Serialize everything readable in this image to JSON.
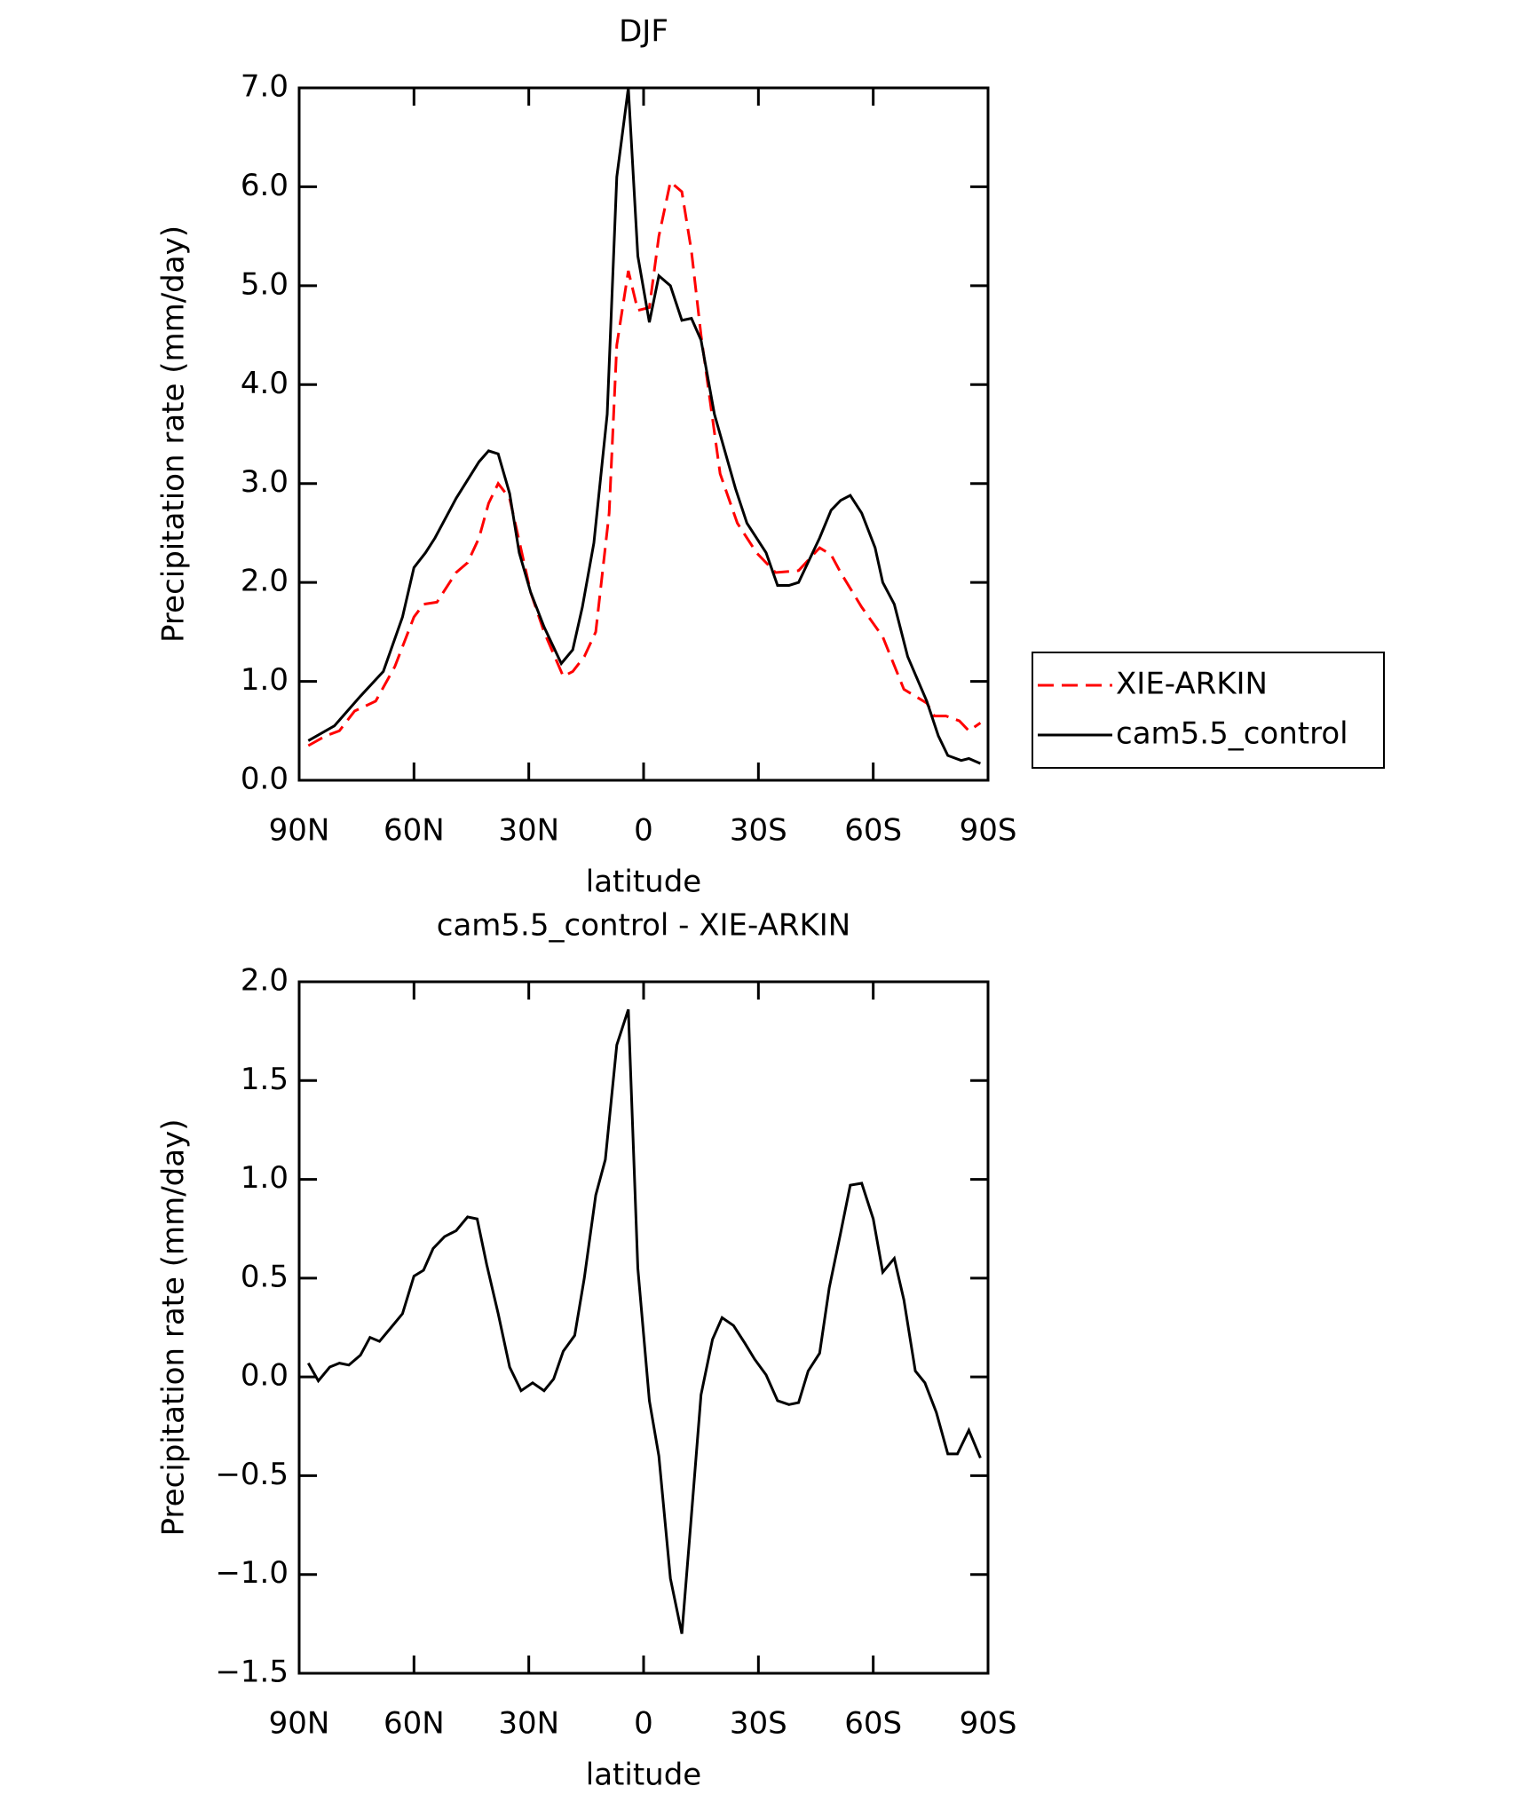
{
  "chart_data": [
    {
      "type": "line",
      "title": "DJF",
      "xlabel": "latitude",
      "ylabel": "Precipitation rate (mm/day)",
      "xlim": [
        90,
        -90
      ],
      "xticks": [
        {
          "value": 90,
          "label": "90N"
        },
        {
          "value": 60,
          "label": "60N"
        },
        {
          "value": 30,
          "label": "30N"
        },
        0,
        {
          "value": -30,
          "label": "30S"
        },
        {
          "value": -60,
          "label": "60S"
        },
        {
          "value": -90,
          "label": "90S"
        }
      ],
      "ylim": [
        0,
        7
      ],
      "yticks": [
        {
          "value": 0,
          "label": "0.0"
        },
        {
          "value": 1,
          "label": "1.0"
        },
        {
          "value": 2,
          "label": "2.0"
        },
        {
          "value": 3,
          "label": "3.0"
        },
        {
          "value": 4,
          "label": "4.0"
        },
        {
          "value": 5,
          "label": "5.0"
        },
        {
          "value": 6,
          "label": "6.0"
        },
        {
          "value": 7,
          "label": "7.0"
        }
      ],
      "legend": "right",
      "series": [
        {
          "name": "XIE-ARKIN",
          "color": "#ff0000",
          "style": "dashed",
          "x": [
            87.6,
            83,
            79.5,
            75.5,
            70,
            65,
            60,
            57.5,
            54,
            49,
            46,
            43,
            40.5,
            38,
            35,
            29.5,
            26,
            21,
            18.5,
            15.5,
            12.5,
            9,
            7,
            4,
            1.5,
            -1.5,
            -4,
            -7,
            -10,
            -12.5,
            -15,
            -20,
            -24.5,
            -29.5,
            -34.5,
            -40.5,
            -46,
            -49,
            -51.5,
            -57,
            -62.5,
            -68,
            -74,
            -76,
            -79,
            -82.5,
            -85,
            -88
          ],
          "values": [
            0.35,
            0.45,
            0.5,
            0.7,
            0.8,
            1.15,
            1.65,
            1.78,
            1.8,
            2.1,
            2.2,
            2.45,
            2.8,
            3.0,
            2.85,
            1.9,
            1.5,
            1.05,
            1.1,
            1.25,
            1.5,
            2.7,
            4.4,
            5.15,
            4.75,
            4.78,
            5.5,
            6.05,
            5.95,
            5.35,
            4.5,
            3.1,
            2.6,
            2.3,
            2.1,
            2.12,
            2.35,
            2.28,
            2.1,
            1.75,
            1.45,
            0.92,
            0.78,
            0.65,
            0.65,
            0.6,
            0.5,
            0.58
          ]
        },
        {
          "name": "cam5.5_control",
          "color": "#000000",
          "style": "solid",
          "x": [
            87.6,
            80.8,
            74,
            68,
            63,
            60,
            57,
            54.5,
            49,
            43,
            40.5,
            38,
            35,
            32.5,
            29.5,
            26,
            21.5,
            18.5,
            16,
            13,
            9.5,
            7,
            4,
            1.5,
            -1.5,
            -4,
            -7,
            -10,
            -12.5,
            -15,
            -18.5,
            -24,
            -27,
            -32,
            -35,
            -38,
            -40.5,
            -46,
            -49,
            -51.5,
            -54,
            -57,
            -60.5,
            -62.5,
            -65.5,
            -69,
            -74,
            -77,
            -79.5,
            -83,
            -85,
            -88
          ],
          "values": [
            0.4,
            0.55,
            0.85,
            1.1,
            1.65,
            2.15,
            2.3,
            2.45,
            2.85,
            3.22,
            3.33,
            3.3,
            2.9,
            2.3,
            1.9,
            1.55,
            1.18,
            1.32,
            1.75,
            2.4,
            3.7,
            6.1,
            7.0,
            5.3,
            4.63,
            5.1,
            5.0,
            4.65,
            4.67,
            4.45,
            3.7,
            2.95,
            2.6,
            2.3,
            1.97,
            1.97,
            2.0,
            2.45,
            2.73,
            2.83,
            2.88,
            2.7,
            2.35,
            2.0,
            1.78,
            1.25,
            0.8,
            0.45,
            0.25,
            0.2,
            0.22,
            0.17
          ]
        }
      ]
    },
    {
      "type": "line",
      "title": "cam5.5_control - XIE-ARKIN",
      "xlabel": "latitude",
      "ylabel": "Precipitation rate (mm/day)",
      "xlim": [
        90,
        -90
      ],
      "xticks": [
        {
          "value": 90,
          "label": "90N"
        },
        {
          "value": 60,
          "label": "60N"
        },
        {
          "value": 30,
          "label": "30N"
        },
        0,
        {
          "value": -30,
          "label": "30S"
        },
        {
          "value": -60,
          "label": "60S"
        },
        {
          "value": -90,
          "label": "90S"
        }
      ],
      "ylim": [
        -1.5,
        2
      ],
      "yticks": [
        {
          "value": -1.5,
          "label": "−1.5"
        },
        {
          "value": -1,
          "label": "−1.0"
        },
        {
          "value": -0.5,
          "label": "−0.5"
        },
        {
          "value": 0,
          "label": "0.0"
        },
        0.5,
        {
          "value": 1,
          "label": "1.0"
        },
        1.5,
        {
          "value": 2,
          "label": "2.0"
        }
      ],
      "series": [
        {
          "color": "#000000",
          "style": "solid",
          "x": [
            87.6,
            85,
            82,
            79.5,
            77,
            74,
            71.5,
            69,
            66,
            63,
            60,
            57.5,
            55,
            52,
            49,
            46,
            43.5,
            41,
            38,
            35,
            32,
            29,
            26,
            23.5,
            21,
            18,
            15.5,
            12.5,
            10,
            7,
            4,
            1.5,
            -1.5,
            -4,
            -7,
            -10,
            -12.5,
            -15,
            -18,
            -20.5,
            -23.5,
            -26.5,
            -29,
            -32,
            -35,
            -38,
            -40.5,
            -43,
            -46,
            -48.5,
            -51.5,
            -54,
            -57,
            -60,
            -62.5,
            -65.5,
            -68,
            -71,
            -73.5,
            -76.5,
            -79.5,
            -82,
            -85,
            -88
          ],
          "values": [
            0.07,
            -0.02,
            0.05,
            0.07,
            0.06,
            0.11,
            0.2,
            0.18,
            0.25,
            0.32,
            0.51,
            0.54,
            0.65,
            0.71,
            0.74,
            0.81,
            0.8,
            0.57,
            0.32,
            0.05,
            -0.07,
            -0.03,
            -0.07,
            -0.01,
            0.13,
            0.21,
            0.5,
            0.92,
            1.1,
            1.68,
            1.86,
            0.55,
            -0.12,
            -0.4,
            -1.02,
            -1.3,
            -0.7,
            -0.09,
            0.19,
            0.3,
            0.26,
            0.17,
            0.09,
            0.01,
            -0.12,
            -0.14,
            -0.13,
            0.03,
            0.12,
            0.45,
            0.73,
            0.97,
            0.98,
            0.8,
            0.53,
            0.6,
            0.39,
            0.03,
            -0.03,
            -0.18,
            -0.39,
            -0.39,
            -0.27,
            -0.41
          ]
        }
      ]
    }
  ]
}
